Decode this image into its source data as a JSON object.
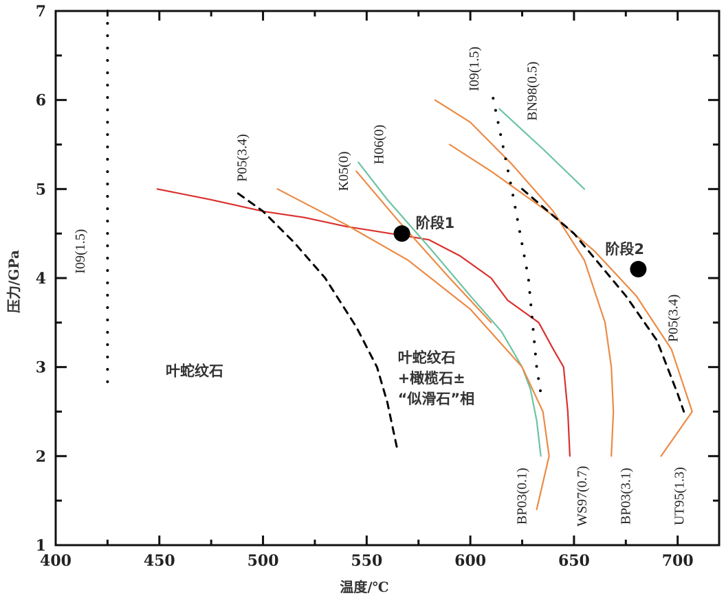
{
  "chart_data": {
    "type": "line",
    "title": "",
    "xlabel": "温度/℃",
    "ylabel": "压力/GPa",
    "xlim": [
      400,
      720
    ],
    "ylim": [
      1,
      7
    ],
    "grid": false,
    "x_ticks": [
      400,
      450,
      500,
      550,
      600,
      650,
      700
    ],
    "y_ticks": [
      1,
      2,
      3,
      4,
      5,
      6,
      7
    ],
    "colors": {
      "red": "#d9302e",
      "orange": "#ec8a45",
      "teal": "#6cc3a2",
      "black": "#000000"
    },
    "series": [
      {
        "name": "WS97(0.7)",
        "color": "red",
        "style": "solid",
        "points": [
          [
            449,
            5.0
          ],
          [
            475,
            4.88
          ],
          [
            500,
            4.75
          ],
          [
            520,
            4.68
          ],
          [
            540,
            4.58
          ],
          [
            567,
            4.48
          ],
          [
            580,
            4.43
          ],
          [
            595,
            4.25
          ],
          [
            610,
            4.0
          ],
          [
            618,
            3.75
          ],
          [
            633,
            3.5
          ],
          [
            640,
            3.2
          ],
          [
            645,
            3.0
          ],
          [
            647,
            2.5
          ],
          [
            648,
            2.0
          ]
        ]
      },
      {
        "name": "K05(0)",
        "color": "teal",
        "style": "solid",
        "points": [
          [
            546,
            5.3
          ],
          [
            560,
            4.88
          ],
          [
            580,
            4.35
          ],
          [
            600,
            3.8
          ],
          [
            615,
            3.4
          ],
          [
            625,
            3.0
          ],
          [
            629,
            2.75
          ],
          [
            632,
            2.4
          ],
          [
            634,
            2.0
          ]
        ]
      },
      {
        "name": "H06(0)",
        "color": "orange",
        "style": "solid",
        "points": [
          [
            545,
            5.2
          ],
          [
            565,
            4.65
          ],
          [
            590,
            4.0
          ],
          [
            610,
            3.5
          ]
        ]
      },
      {
        "name": "BP03(0.1)",
        "color": "orange",
        "style": "solid",
        "points": [
          [
            507,
            5.0
          ],
          [
            540,
            4.6
          ],
          [
            570,
            4.2
          ],
          [
            600,
            3.65
          ],
          [
            625,
            3.0
          ],
          [
            635,
            2.5
          ],
          [
            638,
            2.0
          ],
          [
            632,
            1.4
          ]
        ]
      },
      {
        "name": "BP03(3.1)",
        "color": "orange",
        "style": "solid",
        "points": [
          [
            583,
            6.0
          ],
          [
            600,
            5.75
          ],
          [
            620,
            5.28
          ],
          [
            640,
            4.75
          ],
          [
            655,
            4.2
          ],
          [
            665,
            3.5
          ],
          [
            668,
            3.0
          ],
          [
            669,
            2.5
          ],
          [
            668,
            2.0
          ]
        ]
      },
      {
        "name": "UT95(1.3)",
        "color": "orange",
        "style": "solid",
        "points": [
          [
            590,
            5.5
          ],
          [
            610,
            5.2
          ],
          [
            640,
            4.7
          ],
          [
            660,
            4.3
          ],
          [
            680,
            3.8
          ],
          [
            697,
            3.2
          ],
          [
            707,
            2.5
          ],
          [
            692,
            2.0
          ]
        ]
      },
      {
        "name": "BN98(0.5)",
        "color": "teal",
        "style": "solid",
        "points": [
          [
            614,
            5.9
          ],
          [
            635,
            5.45
          ],
          [
            655,
            5.0
          ]
        ]
      },
      {
        "name": "P05(3.4)",
        "color": "black",
        "style": "dashed",
        "points": [
          [
            488,
            4.95
          ],
          [
            500,
            4.75
          ],
          [
            515,
            4.4
          ],
          [
            530,
            4.0
          ],
          [
            545,
            3.45
          ],
          [
            555,
            3.0
          ],
          [
            560,
            2.6
          ],
          [
            565,
            2.05
          ]
        ]
      },
      {
        "name": "P05(3.4)",
        "color": "black",
        "style": "dashed",
        "points": [
          [
            625,
            5.0
          ],
          [
            650,
            4.5
          ],
          [
            675,
            3.8
          ],
          [
            690,
            3.3
          ],
          [
            700,
            2.7
          ],
          [
            703,
            2.5
          ]
        ]
      },
      {
        "name": "I09(1.5)",
        "color": "black",
        "style": "dotted",
        "points": [
          [
            425,
            7.0
          ],
          [
            425,
            2.7
          ]
        ]
      },
      {
        "name": "I09(1.5)",
        "color": "black",
        "style": "dotted",
        "points": [
          [
            611,
            6.02
          ],
          [
            620,
            5.0
          ],
          [
            628,
            4.0
          ],
          [
            632,
            3.0
          ],
          [
            634,
            2.7
          ]
        ]
      }
    ],
    "curve_labels": [
      {
        "text": "I09(1.5)",
        "at": [
          414,
          4.3
        ]
      },
      {
        "text": "P05(3.4)",
        "at": [
          492,
          5.35
        ]
      },
      {
        "text": "K05(0)",
        "at": [
          541,
          5.2
        ]
      },
      {
        "text": "H06(0)",
        "at": [
          558,
          5.5
        ]
      },
      {
        "text": "I09(1.5)",
        "at": [
          604,
          6.35
        ]
      },
      {
        "text": "BN98(0.5)",
        "at": [
          632,
          6.1
        ]
      },
      {
        "text": "P05(3.4)",
        "at": [
          700,
          3.55
        ]
      },
      {
        "text": "BP03(0.1)",
        "at": [
          627,
          1.55
        ]
      },
      {
        "text": "WS97(0.7)",
        "at": [
          656,
          1.55
        ]
      },
      {
        "text": "BP03(3.1)",
        "at": [
          677,
          1.55
        ]
      },
      {
        "text": "UT95(1.3)",
        "at": [
          703,
          1.55
        ]
      }
    ],
    "points": [
      {
        "label": "阶段1",
        "x": 567,
        "y": 4.5
      },
      {
        "label": "阶段2",
        "x": 681,
        "y": 4.1
      }
    ],
    "region_labels": [
      {
        "lines": [
          "叶蛇纹石"
        ],
        "at": [
          467,
          2.9
        ]
      },
      {
        "lines": [
          "叶蛇纹石",
          "+橄榄石±",
          "“似滑石”相"
        ],
        "at": [
          565,
          3.05
        ]
      }
    ]
  }
}
